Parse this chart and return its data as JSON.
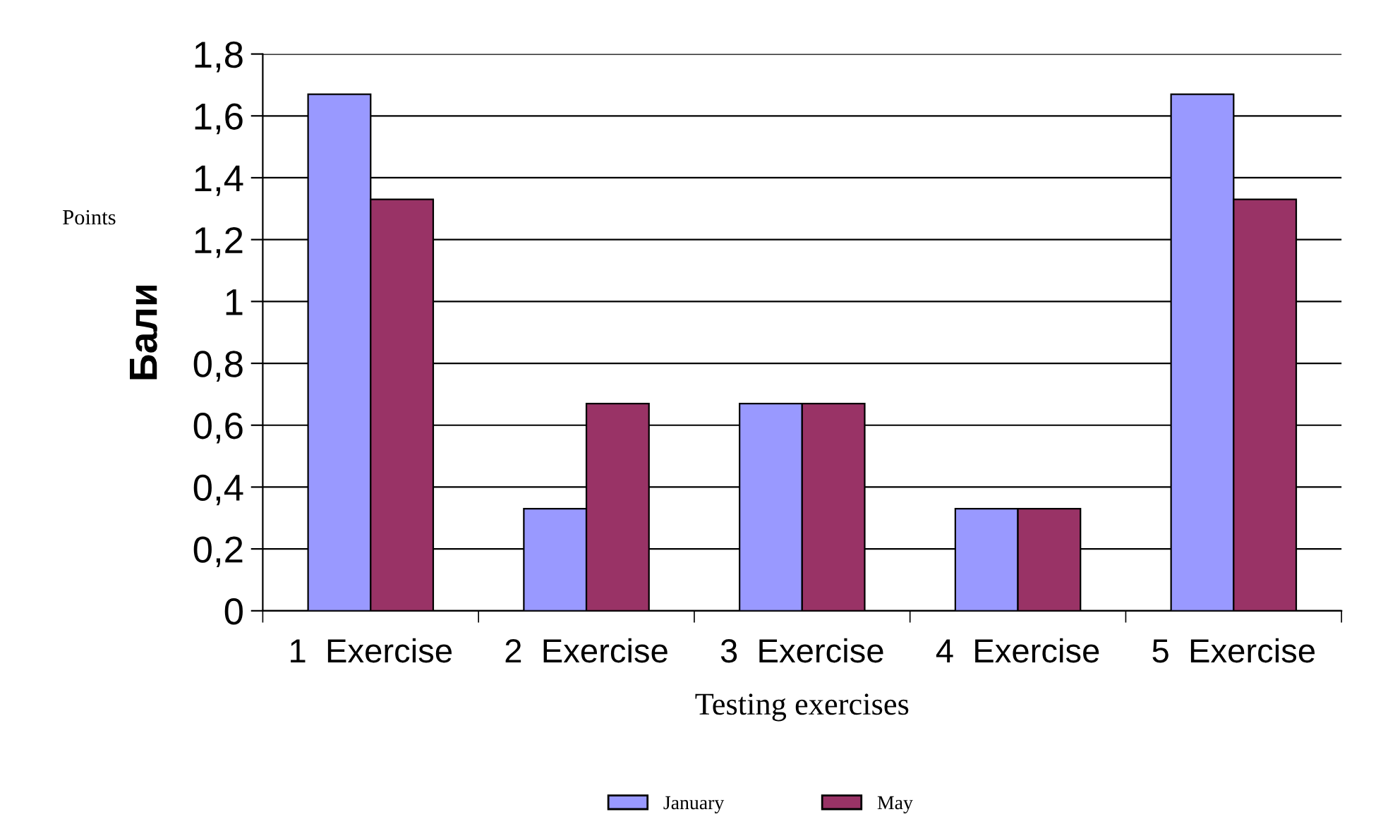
{
  "chart_data": {
    "type": "bar",
    "categories": [
      "1  Exercise",
      "2  Exercise",
      "3  Exercise",
      "4  Exercise",
      "5  Exercise"
    ],
    "series": [
      {
        "name": "January",
        "color": "#9999ff",
        "values": [
          1.67,
          0.33,
          0.67,
          0.33,
          1.67
        ]
      },
      {
        "name": "May",
        "color": "#993366",
        "values": [
          1.33,
          0.67,
          0.67,
          0.33,
          1.33
        ]
      }
    ],
    "xlabel": "Testing exercises",
    "ylabel": "Бали",
    "annotations": [
      "Points"
    ],
    "ylim": [
      0,
      1.8
    ],
    "yticks": [
      0,
      {
        "value": 0.2,
        "label": "0,2"
      },
      {
        "value": 0.4,
        "label": "0,4"
      },
      {
        "value": 0.6,
        "label": "0,6"
      },
      {
        "value": 0.8,
        "label": "0,8"
      },
      1,
      {
        "value": 1.2,
        "label": "1,2"
      },
      {
        "value": 1.4,
        "label": "1,4"
      },
      {
        "value": 1.6,
        "label": "1,6"
      },
      {
        "value": 1.8,
        "label": "1,8"
      }
    ],
    "grid": "y",
    "legend": "bottom"
  }
}
